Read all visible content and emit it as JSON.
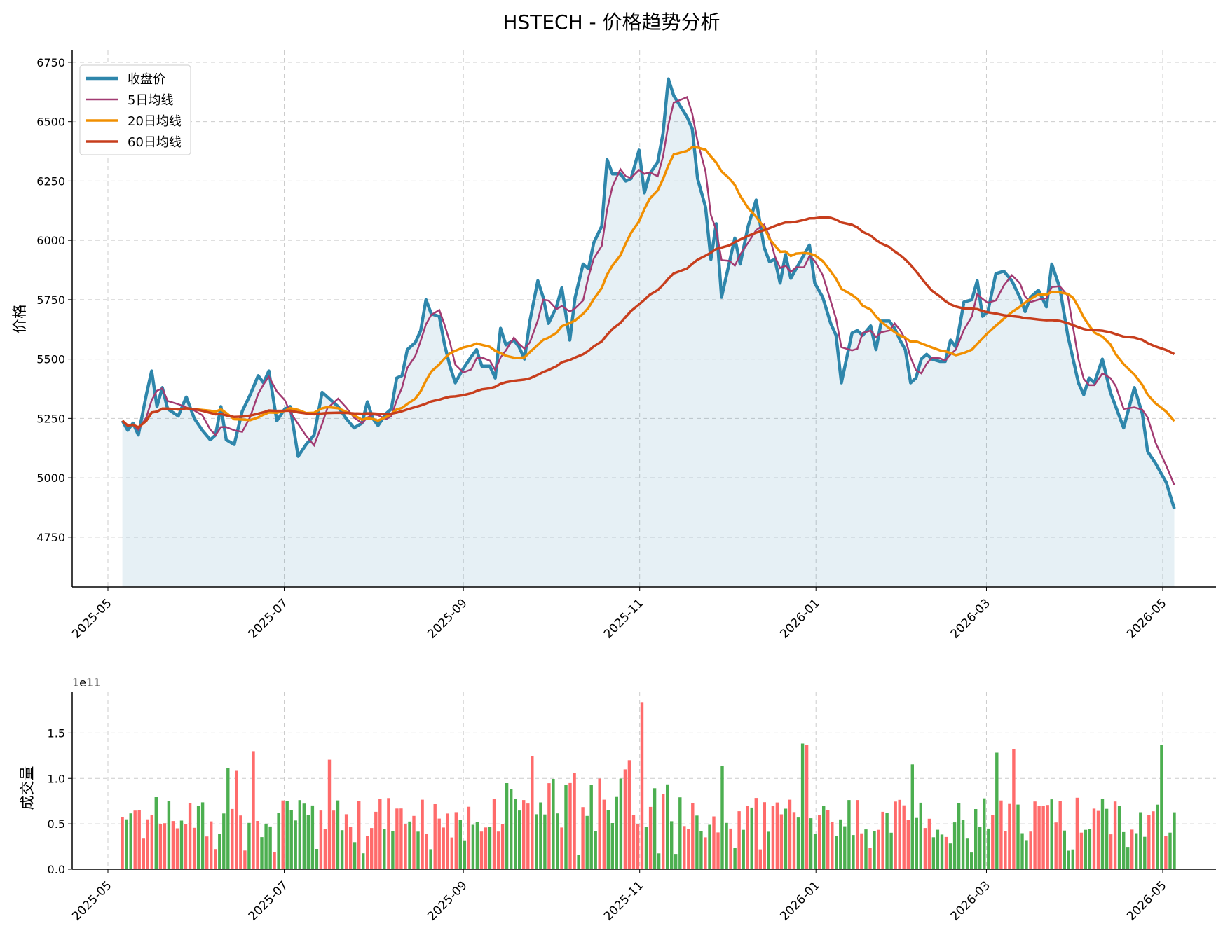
{
  "title": "HSTECH - 价格趋势分析",
  "colors": {
    "close": "#2E86AB",
    "ma5": "#A23B72",
    "ma20": "#F18F01",
    "ma60": "#C73E1D",
    "fill": "#2E86AB",
    "vol_up": "#FF6B6B",
    "vol_down": "#4CAF50",
    "grid": "#cccccc"
  },
  "chart_data": [
    {
      "type": "line",
      "ylabel": "价格",
      "xlabel": "",
      "ylim": [
        4540,
        6800
      ],
      "xlim": [
        "2025-04-15",
        "2026-05-22"
      ],
      "grid": true,
      "legend_position": "top-left",
      "x_ticks": [
        "2025-05",
        "2025-07",
        "2025-09",
        "2025-11",
        "2026-01",
        "2026-03",
        "2026-05"
      ],
      "y_ticks": [
        4750,
        5000,
        5250,
        5500,
        5750,
        6000,
        6250,
        6500,
        6750
      ],
      "series": [
        {
          "name": "收盘价",
          "key": "close",
          "points": [
            [
              "2025-05-06",
              5240
            ],
            [
              "2025-05-08",
              5200
            ],
            [
              "2025-05-10",
              5230
            ],
            [
              "2025-05-12",
              5180
            ],
            [
              "2025-05-15",
              5350
            ],
            [
              "2025-05-17",
              5450
            ],
            [
              "2025-05-19",
              5300
            ],
            [
              "2025-05-21",
              5380
            ],
            [
              "2025-05-23",
              5290
            ],
            [
              "2025-05-27",
              5260
            ],
            [
              "2025-05-30",
              5340
            ],
            [
              "2025-06-02",
              5250
            ],
            [
              "2025-06-05",
              5200
            ],
            [
              "2025-06-08",
              5160
            ],
            [
              "2025-06-10",
              5180
            ],
            [
              "2025-06-12",
              5300
            ],
            [
              "2025-06-14",
              5160
            ],
            [
              "2025-06-17",
              5140
            ],
            [
              "2025-06-20",
              5280
            ],
            [
              "2025-06-23",
              5350
            ],
            [
              "2025-06-26",
              5430
            ],
            [
              "2025-06-28",
              5400
            ],
            [
              "2025-06-30",
              5450
            ],
            [
              "2025-07-03",
              5240
            ],
            [
              "2025-07-06",
              5290
            ],
            [
              "2025-07-08",
              5300
            ],
            [
              "2025-07-11",
              5090
            ],
            [
              "2025-07-14",
              5140
            ],
            [
              "2025-07-17",
              5180
            ],
            [
              "2025-07-20",
              5360
            ],
            [
              "2025-07-22",
              5340
            ],
            [
              "2025-07-26",
              5300
            ],
            [
              "2025-07-29",
              5250
            ],
            [
              "2025-08-01",
              5210
            ],
            [
              "2025-08-04",
              5230
            ],
            [
              "2025-08-06",
              5320
            ],
            [
              "2025-08-08",
              5250
            ],
            [
              "2025-08-10",
              5220
            ],
            [
              "2025-08-13",
              5270
            ],
            [
              "2025-08-15",
              5290
            ],
            [
              "2025-08-17",
              5420
            ],
            [
              "2025-08-19",
              5430
            ],
            [
              "2025-08-21",
              5540
            ],
            [
              "2025-08-24",
              5570
            ],
            [
              "2025-08-26",
              5620
            ],
            [
              "2025-08-28",
              5750
            ],
            [
              "2025-08-30",
              5690
            ],
            [
              "2025-09-02",
              5680
            ],
            [
              "2025-09-04",
              5560
            ],
            [
              "2025-09-06",
              5470
            ],
            [
              "2025-09-08",
              5400
            ],
            [
              "2025-09-11",
              5460
            ],
            [
              "2025-09-14",
              5510
            ],
            [
              "2025-09-16",
              5540
            ],
            [
              "2025-09-18",
              5470
            ],
            [
              "2025-09-21",
              5470
            ],
            [
              "2025-09-23",
              5420
            ],
            [
              "2025-09-25",
              5630
            ],
            [
              "2025-09-27",
              5560
            ],
            [
              "2025-09-30",
              5580
            ],
            [
              "2025-10-02",
              5550
            ],
            [
              "2025-10-04",
              5500
            ],
            [
              "2025-10-06",
              5660
            ],
            [
              "2025-10-09",
              5830
            ],
            [
              "2025-10-11",
              5760
            ],
            [
              "2025-10-13",
              5650
            ],
            [
              "2025-10-16",
              5720
            ],
            [
              "2025-10-18",
              5800
            ],
            [
              "2025-10-21",
              5580
            ],
            [
              "2025-10-23",
              5760
            ],
            [
              "2025-10-26",
              5900
            ],
            [
              "2025-10-28",
              5880
            ],
            [
              "2025-10-30",
              5990
            ],
            [
              "2025-11-02",
              6060
            ],
            [
              "2025-11-04",
              6340
            ],
            [
              "2025-11-06",
              6280
            ],
            [
              "2025-11-09",
              6280
            ],
            [
              "2025-11-11",
              6250
            ],
            [
              "2025-11-13",
              6260
            ],
            [
              "2025-11-16",
              6380
            ],
            [
              "2025-11-18",
              6200
            ],
            [
              "2025-11-20",
              6280
            ],
            [
              "2025-11-23",
              6330
            ],
            [
              "2025-11-25",
              6450
            ],
            [
              "2025-11-27",
              6680
            ],
            [
              "2025-11-29",
              6610
            ],
            [
              "2025-12-04",
              6520
            ],
            [
              "2025-12-06",
              6470
            ],
            [
              "2025-12-08",
              6260
            ],
            [
              "2025-12-11",
              6140
            ],
            [
              "2025-12-13",
              5920
            ],
            [
              "2025-12-15",
              6070
            ],
            [
              "2025-12-17",
              5760
            ],
            [
              "2025-12-20",
              5910
            ],
            [
              "2025-12-22",
              6010
            ],
            [
              "2025-12-24",
              5900
            ],
            [
              "2025-12-27",
              6060
            ],
            [
              "2025-12-30",
              6170
            ],
            [
              "2026-01-02",
              5970
            ],
            [
              "2026-01-04",
              5910
            ],
            [
              "2026-01-06",
              5920
            ],
            [
              "2026-01-08",
              5820
            ],
            [
              "2026-01-10",
              5940
            ],
            [
              "2026-01-12",
              5840
            ],
            [
              "2026-01-14",
              5880
            ],
            [
              "2026-01-17",
              5940
            ],
            [
              "2026-01-19",
              5980
            ],
            [
              "2026-01-21",
              5820
            ],
            [
              "2026-01-24",
              5760
            ],
            [
              "2026-01-27",
              5650
            ],
            [
              "2026-01-29",
              5600
            ],
            [
              "2026-01-31",
              5400
            ],
            [
              "2026-02-04",
              5610
            ],
            [
              "2026-02-06",
              5620
            ],
            [
              "2026-02-08",
              5600
            ],
            [
              "2026-02-11",
              5640
            ],
            [
              "2026-02-13",
              5540
            ],
            [
              "2026-02-15",
              5660
            ],
            [
              "2026-02-18",
              5660
            ],
            [
              "2026-02-20",
              5630
            ],
            [
              "2026-02-22",
              5580
            ],
            [
              "2026-02-24",
              5540
            ],
            [
              "2026-02-26",
              5400
            ],
            [
              "2026-02-28",
              5420
            ],
            [
              "2026-03-02",
              5500
            ],
            [
              "2026-03-04",
              5520
            ],
            [
              "2026-03-06",
              5500
            ],
            [
              "2026-03-09",
              5490
            ],
            [
              "2026-03-11",
              5490
            ],
            [
              "2026-03-13",
              5580
            ],
            [
              "2026-03-15",
              5550
            ],
            [
              "2026-03-18",
              5740
            ],
            [
              "2026-03-21",
              5750
            ],
            [
              "2026-03-23",
              5830
            ],
            [
              "2026-03-25",
              5680
            ],
            [
              "2026-03-27",
              5700
            ],
            [
              "2026-03-30",
              5860
            ],
            [
              "2026-04-02",
              5870
            ],
            [
              "2026-04-05",
              5830
            ],
            [
              "2026-04-08",
              5760
            ],
            [
              "2026-04-10",
              5700
            ],
            [
              "2026-04-12",
              5760
            ],
            [
              "2026-04-15",
              5790
            ],
            [
              "2026-04-18",
              5720
            ],
            [
              "2026-04-20",
              5900
            ],
            [
              "2026-04-23",
              5800
            ],
            [
              "2026-04-26",
              5600
            ],
            [
              "2026-04-28",
              5500
            ],
            [
              "2026-04-30",
              5400
            ],
            [
              "2026-05-02",
              5350
            ],
            [
              "2026-05-04",
              5420
            ],
            [
              "2026-05-06",
              5400
            ],
            [
              "2026-05-09",
              5500
            ],
            [
              "2026-05-12",
              5360
            ],
            [
              "2026-05-14",
              5300
            ],
            [
              "2026-05-17",
              5210
            ],
            [
              "2026-05-21",
              5380
            ],
            [
              "2026-05-24",
              5270
            ],
            [
              "2026-05-26",
              5110
            ],
            [
              "2026-05-29",
              5060
            ],
            [
              "2026-06-02",
              4980
            ],
            [
              "2026-06-05",
              4870
            ]
          ]
        }
      ]
    }
  ],
  "price_chart": {
    "series_names": [
      "收盘价",
      "5日均线",
      "20日均线",
      "60日均线"
    ]
  },
  "volume_chart": {
    "ylabel": "成交量",
    "exponent_label": "1e11",
    "y_ticks": [
      "0.0",
      "0.5",
      "1.0",
      "1.5"
    ]
  }
}
